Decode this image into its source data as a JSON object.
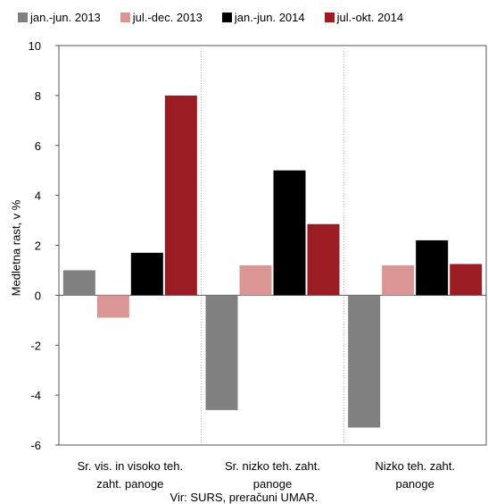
{
  "chart_data": {
    "type": "bar",
    "categories": [
      [
        "Sr. vis. in visoko teh.",
        "zaht. panoge"
      ],
      [
        "Sr. nizko teh. zaht.",
        "panoge"
      ],
      [
        "Nizko teh. zaht.",
        "panoge"
      ]
    ],
    "series": [
      {
        "name": "jan.-jun. 2013",
        "color": "#808080",
        "values": [
          1.0,
          -4.6,
          -5.3
        ]
      },
      {
        "name": "jul.-dec. 2013",
        "color": "#d99694",
        "values": [
          -0.9,
          1.2,
          1.2
        ]
      },
      {
        "name": "jan.-jun. 2014",
        "color": "#000000",
        "values": [
          1.7,
          5.0,
          2.2
        ]
      },
      {
        "name": "jul.-okt. 2014",
        "color": "#9b1c22",
        "values": [
          8.0,
          2.85,
          1.25
        ]
      }
    ],
    "ylabel": "Medletna rast, v %",
    "ylim": [
      -6,
      10
    ],
    "yticks": [
      -6,
      -4,
      -2,
      0,
      2,
      4,
      6,
      8,
      10
    ],
    "legend_position": "top",
    "grid": "vertical dotted separators",
    "source": "Vir: SURS, preračuni UMAR."
  }
}
